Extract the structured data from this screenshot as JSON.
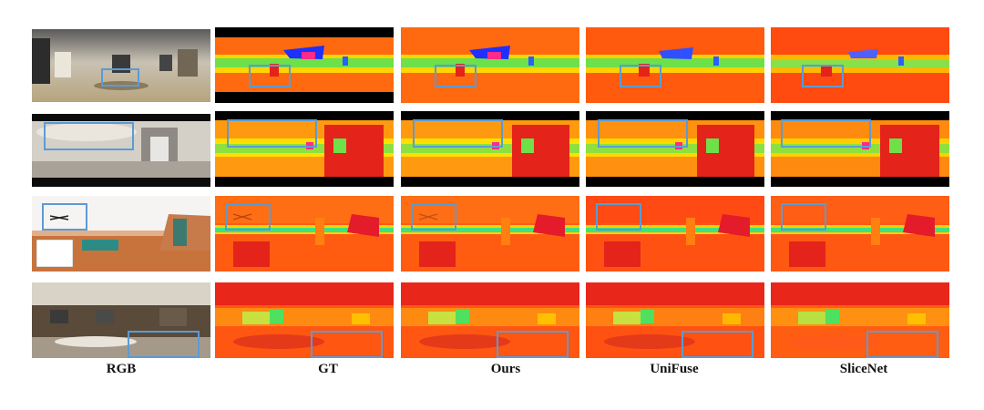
{
  "columns": [
    {
      "key": "rgb",
      "label": "RGB"
    },
    {
      "key": "gt",
      "label": "GT"
    },
    {
      "key": "ours",
      "label": "Ours"
    },
    {
      "key": "unifuse",
      "label": "UniFuse"
    },
    {
      "key": "slicenet",
      "label": "SliceNet"
    }
  ],
  "rows": [
    {
      "kind": "rgb-room-1",
      "depth_scene": "room-1"
    },
    {
      "kind": "rgb-room-2",
      "depth_scene": "room-2"
    },
    {
      "kind": "rgb-room-3",
      "depth_scene": "room-3"
    },
    {
      "kind": "rgb-room-4",
      "depth_scene": "room-4"
    }
  ],
  "colors": {
    "highlight_box": "#5b9bd5",
    "depth_far": "#e4231a",
    "depth_mid": "#ff7a10",
    "depth_near": "#ffe000",
    "depth_close": "#33e05a",
    "depth_closest": "#2050ff"
  }
}
